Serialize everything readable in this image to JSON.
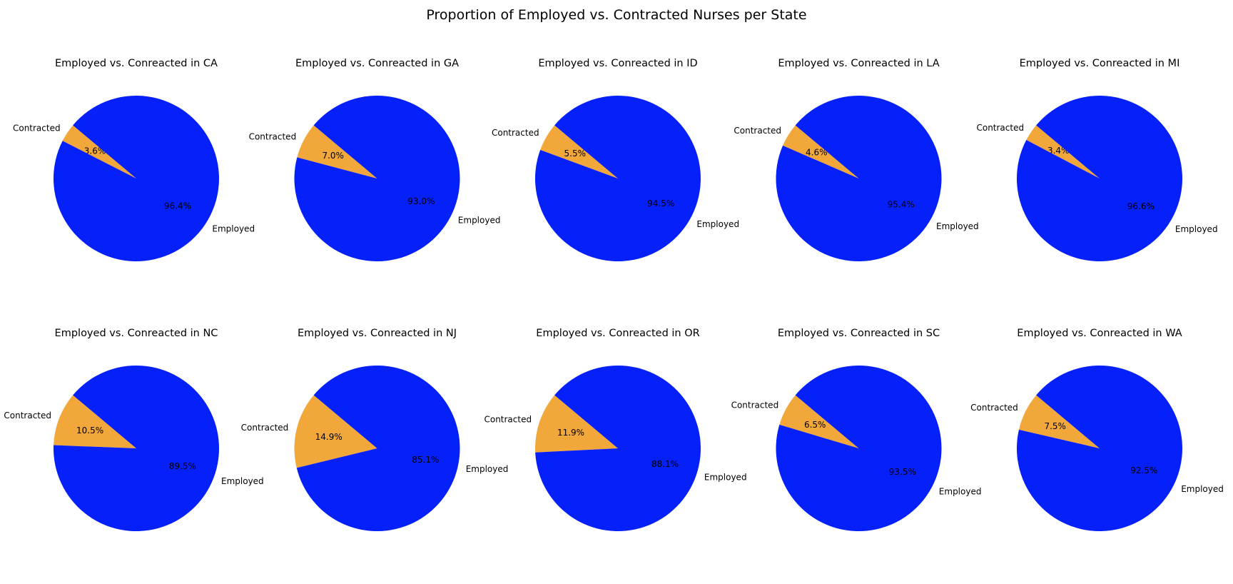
{
  "title": "Proportion of Employed vs. Contracted Nurses per State",
  "colors": {
    "employed": "#0520f8",
    "contracted": "#f2a73b"
  },
  "chart_data": [
    {
      "type": "pie",
      "title": "Employed vs. Conreacted in CA",
      "labels": [
        "Contracted",
        "Employed"
      ],
      "values": [
        3.6,
        96.4
      ],
      "pct_labels": [
        "3.6%",
        "96.4%"
      ]
    },
    {
      "type": "pie",
      "title": "Employed vs. Conreacted in GA",
      "labels": [
        "Contracted",
        "Employed"
      ],
      "values": [
        7.0,
        93.0
      ],
      "pct_labels": [
        "7.0%",
        "93.0%"
      ]
    },
    {
      "type": "pie",
      "title": "Employed vs. Conreacted in ID",
      "labels": [
        "Contracted",
        "Employed"
      ],
      "values": [
        5.5,
        94.5
      ],
      "pct_labels": [
        "5.5%",
        "94.5%"
      ]
    },
    {
      "type": "pie",
      "title": "Employed vs. Conreacted in LA",
      "labels": [
        "Contracted",
        "Employed"
      ],
      "values": [
        4.6,
        95.4
      ],
      "pct_labels": [
        "4.6%",
        "95.4%"
      ]
    },
    {
      "type": "pie",
      "title": "Employed vs. Conreacted in MI",
      "labels": [
        "Contracted",
        "Employed"
      ],
      "values": [
        3.4,
        96.6
      ],
      "pct_labels": [
        "3.4%",
        "96.6%"
      ]
    },
    {
      "type": "pie",
      "title": "Employed vs. Conreacted in NC",
      "labels": [
        "Contracted",
        "Employed"
      ],
      "values": [
        10.5,
        89.5
      ],
      "pct_labels": [
        "10.5%",
        "89.5%"
      ]
    },
    {
      "type": "pie",
      "title": "Employed vs. Conreacted in NJ",
      "labels": [
        "Contracted",
        "Employed"
      ],
      "values": [
        14.9,
        85.1
      ],
      "pct_labels": [
        "14.9%",
        "85.1%"
      ]
    },
    {
      "type": "pie",
      "title": "Employed vs. Conreacted in OR",
      "labels": [
        "Contracted",
        "Employed"
      ],
      "values": [
        11.9,
        88.1
      ],
      "pct_labels": [
        "11.9%",
        "88.1%"
      ]
    },
    {
      "type": "pie",
      "title": "Employed vs. Conreacted in SC",
      "labels": [
        "Contracted",
        "Employed"
      ],
      "values": [
        6.5,
        93.5
      ],
      "pct_labels": [
        "6.5%",
        "93.5%"
      ]
    },
    {
      "type": "pie",
      "title": "Employed vs. Conreacted in WA",
      "labels": [
        "Contracted",
        "Employed"
      ],
      "values": [
        7.5,
        92.5
      ],
      "pct_labels": [
        "7.5%",
        "92.5%"
      ]
    }
  ]
}
